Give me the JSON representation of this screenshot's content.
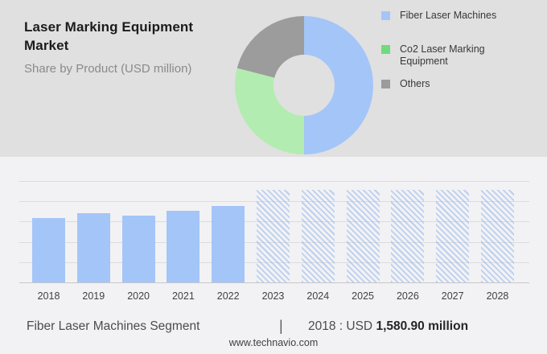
{
  "header": {
    "title": "Laser Marking Equipment Market",
    "subtitle": "Share by Product (USD million)"
  },
  "legend": {
    "items": [
      {
        "label": "Fiber Laser Machines",
        "color": "#a4c5f7"
      },
      {
        "label": "Co2 Laser Marking Equipment",
        "color": "#6edc7d"
      },
      {
        "label": "Others",
        "color": "#9b9b9b"
      }
    ]
  },
  "footer": {
    "segment_label": "Fiber Laser Machines Segment",
    "divider": "|",
    "value_prefix": "2018 : USD",
    "value_bold": "1,580.90 million",
    "website": "www.technavio.com"
  },
  "colors": {
    "header_bg": "#e0e0e1",
    "panel_bg": "#f2f2f4",
    "bar_blue": "#a4c5f7",
    "donut_green": "#b3ecb0",
    "donut_gray": "#9c9c9c",
    "gridline": "#dcdcdf",
    "baseline": "#c7c7ca",
    "hatch_blue": "#8fb2eb"
  },
  "chart_data": [
    {
      "type": "pie",
      "title": "Share by Product (USD million)",
      "donut": true,
      "labels": [
        "Fiber Laser Machines",
        "Co2 Laser Marking Equipment",
        "Others"
      ],
      "values": [
        50,
        29,
        21
      ],
      "unit": "percent (estimated from arc angles; no numeric labels shown)",
      "colors": [
        "#a4c5f7",
        "#b3ecb0",
        "#9c9c9c"
      ],
      "legend_position": "right"
    },
    {
      "type": "bar",
      "title": "Fiber Laser Machines Segment",
      "ylabel": "USD million",
      "categories": [
        "2018",
        "2019",
        "2020",
        "2021",
        "2022",
        "2023",
        "2024",
        "2025",
        "2026",
        "2027",
        "2028"
      ],
      "values": [
        1580.9,
        1700,
        1640,
        1745,
        1865,
        null,
        null,
        null,
        null,
        null,
        null
      ],
      "forecast_categories": [
        "2023",
        "2024",
        "2025",
        "2026",
        "2027",
        "2028"
      ],
      "ylim": [
        0,
        2500
      ],
      "grid": true,
      "gridline_count": 6,
      "bar_color": "#a4c5f7",
      "note": "Only the 2018 value is labeled on the image (USD 1,580.90 million); 2019-2022 values are estimated from bar heights; 2023-2028 are full-height hatched forecast placeholders with no values shown."
    }
  ]
}
